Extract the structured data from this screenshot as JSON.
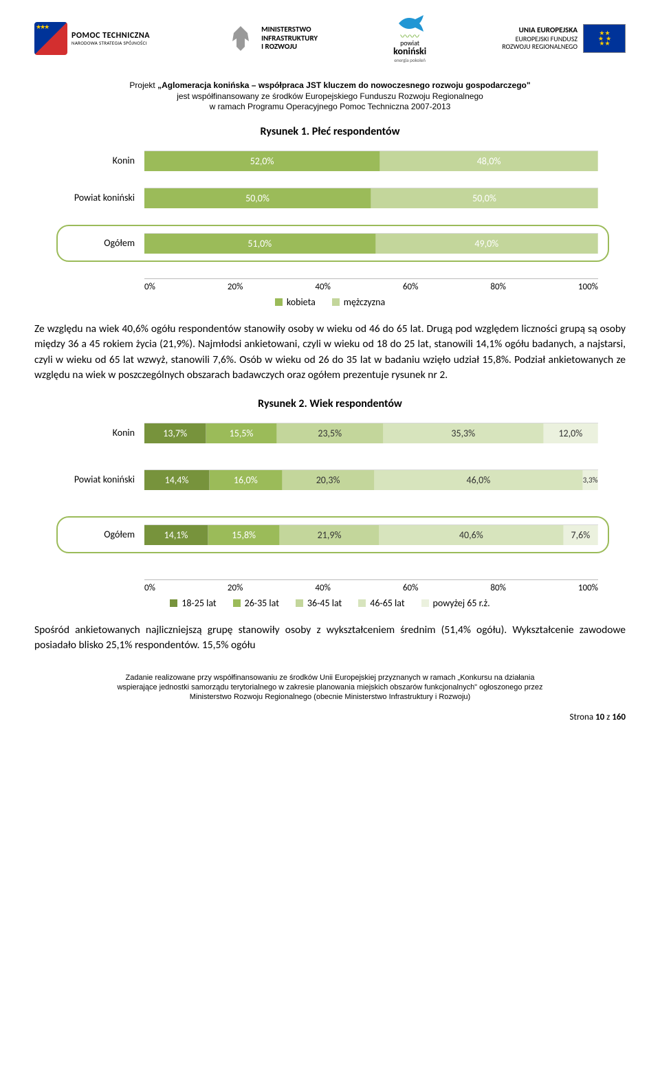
{
  "logos": {
    "pt_title": "POMOC TECHNICZNA",
    "pt_subtitle": "NARODOWA STRATEGIA SPÓJNOŚCI",
    "ministry_l1": "MINISTERSTWO",
    "ministry_l2": "INFRASTRUKTURY",
    "ministry_l3": "I ROZWOJU",
    "powiat_top": "powiat",
    "powiat_bold": "koniński",
    "powiat_tag": "energia pokoleń",
    "eu_l1": "UNIA EUROPEJSKA",
    "eu_l2": "EUROPEJSKI FUNDUSZ",
    "eu_l3": "ROZWOJU REGIONALNEGO"
  },
  "proj": {
    "l1a": "Projekt ",
    "l1b": "„Aglomeracja konińska – współpraca JST kluczem do nowoczesnego rozwoju gospodarczego\"",
    "l2": "jest współfinansowany ze środków Europejskiego Funduszu Rozwoju Regionalnego",
    "l3": "w ramach Programu Operacyjnego Pomoc Techniczna 2007-2013"
  },
  "chart1": {
    "title": "Rysunek 1. Płeć respondentów",
    "categories": [
      "Konin",
      "Powiat koniński",
      "Ogółem"
    ],
    "series": [
      {
        "label": "kobieta",
        "color": "#9bbb59",
        "values": [
          "52,0%",
          "50,0%",
          "51,0%"
        ],
        "pct": [
          52,
          50,
          51
        ]
      },
      {
        "label": "mężczyzna",
        "color": "#c3d69b",
        "values": [
          "48,0%",
          "50,0%",
          "49,0%"
        ],
        "pct": [
          48,
          50,
          49
        ]
      }
    ],
    "ticks": [
      "0%",
      "20%",
      "40%",
      "60%",
      "80%",
      "100%"
    ],
    "highlight_row": 2
  },
  "para1": "Ze względu na wiek 40,6% ogółu respondentów stanowiły osoby w wieku od 46 do 65 lat. Drugą pod względem liczności grupą są osoby między 36 a 45 rokiem życia (21,9%). Najmłodsi ankietowani, czyli w wieku od 18 do 25 lat, stanowili 14,1% ogółu badanych, a najstarsi, czyli w wieku od 65 lat wzwyż, stanowili 7,6%. Osób w wieku od 26 do 35 lat w badaniu wzięło udział 15,8%. Podział ankietowanych ze względu na wiek w poszczególnych obszarach badawczych oraz ogółem prezentuje rysunek nr 2.",
  "chart2": {
    "title": "Rysunek 2. Wiek respondentów",
    "categories": [
      "Konin",
      "Powiat koniński",
      "Ogółem"
    ],
    "series": [
      {
        "label": "18-25 lat",
        "color": "#77933c",
        "values": [
          "13,7%",
          "14,4%",
          "14,1%"
        ],
        "pct": [
          13.7,
          14.4,
          14.1
        ]
      },
      {
        "label": "26-35 lat",
        "color": "#9bbb59",
        "values": [
          "15,5%",
          "16,0%",
          "15,8%"
        ],
        "pct": [
          15.5,
          16.0,
          15.8
        ]
      },
      {
        "label": "36-45 lat",
        "color": "#c3d69b",
        "values": [
          "23,5%",
          "20,3%",
          "21,9%"
        ],
        "pct": [
          23.5,
          20.3,
          21.9
        ]
      },
      {
        "label": "46-65 lat",
        "color": "#d7e4bd",
        "values": [
          "35,3%",
          "46,0%",
          "40,6%"
        ],
        "pct": [
          35.3,
          46.0,
          40.6
        ]
      },
      {
        "label": "powyżej 65 r.ż.",
        "color": "#ebf1de",
        "values": [
          "12,0%",
          "3,3%",
          "7,6%"
        ],
        "pct": [
          12.0,
          3.3,
          7.6
        ]
      }
    ],
    "ticks": [
      "0%",
      "20%",
      "40%",
      "60%",
      "80%",
      "100%"
    ],
    "highlight_row": 2
  },
  "para2": "Spośród ankietowanych najliczniejszą grupę stanowiły osoby z wykształceniem średnim (51,4% ogółu). Wykształcenie zawodowe posiadało blisko 25,1% respondentów. 15,5% ogółu",
  "footer": {
    "l1": "Zadanie  realizowane przy współfinansowaniu ze środków Unii Europejskiej przyznanych w ramach „Konkursu na działania",
    "l2": "wspierające jednostki samorządu terytorialnego w zakresie planowania miejskich obszarów funkcjonalnych\" ogłoszonego przez",
    "l3": "Ministerstwo Rozwoju Regionalnego (obecnie Ministerstwo Infrastruktury i Rozwoju)"
  },
  "page": {
    "prefix": "Strona ",
    "num": "10",
    "mid": " z ",
    "total": "160"
  }
}
